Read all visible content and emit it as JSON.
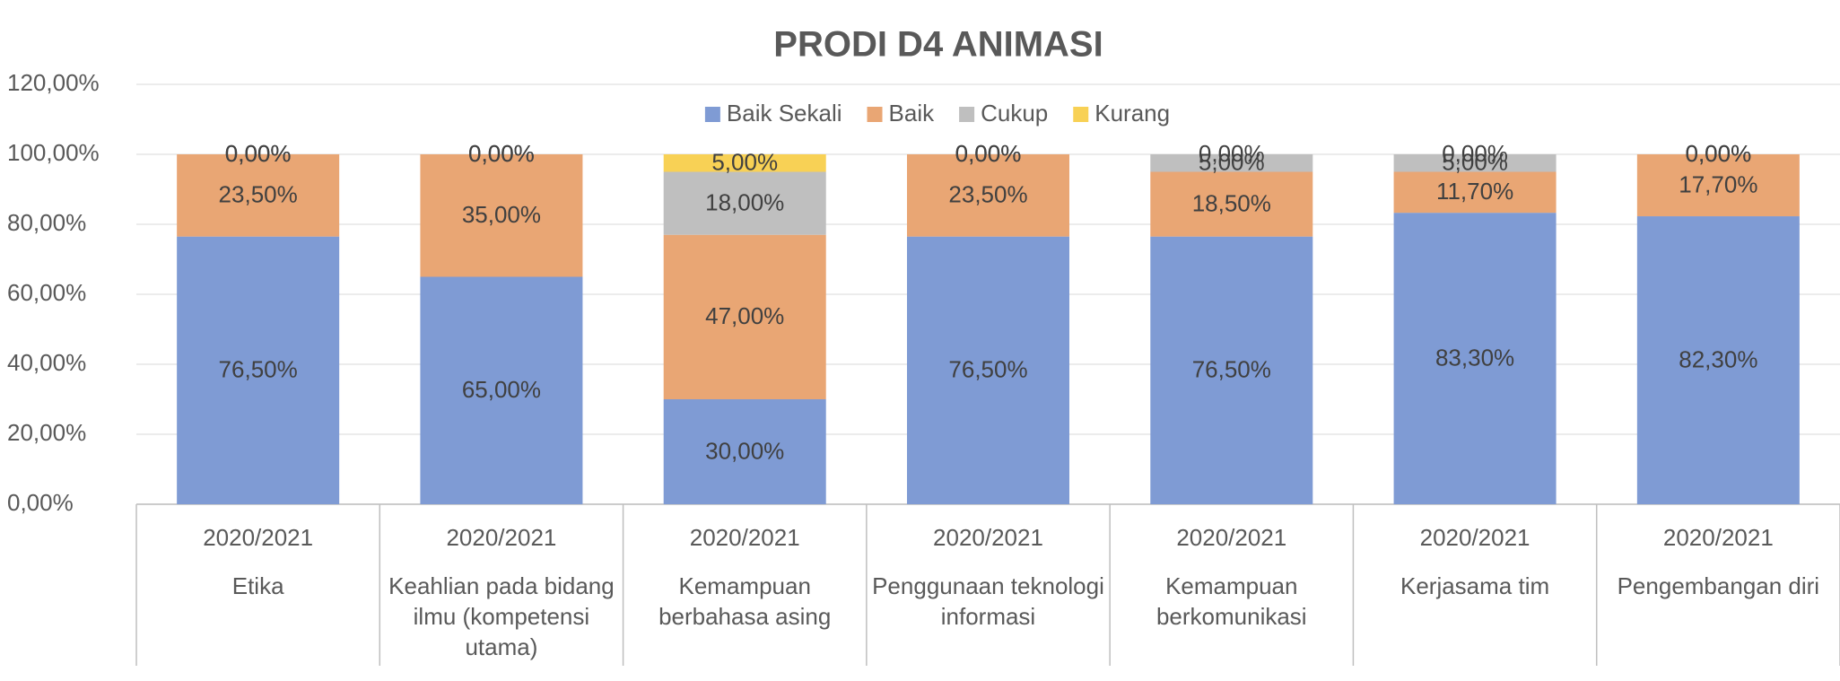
{
  "chart_data": {
    "type": "stacked_bar",
    "title": "PRODI D4 ANIMASI",
    "categories": [
      "Etika",
      "Keahlian pada bidang ilmu (kompetensi utama)",
      "Kemampuan berbahasa asing",
      "Penggunaan teknologi informasi",
      "Kemampuan berkomunikasi",
      "Kerjasama tim",
      "Pengembangan diri"
    ],
    "category_groups": [
      "2020/2021",
      "2020/2021",
      "2020/2021",
      "2020/2021",
      "2020/2021",
      "2020/2021",
      "2020/2021"
    ],
    "series": [
      {
        "name": "Baik Sekali",
        "color": "#7f9bd4",
        "values": [
          76.5,
          65,
          30,
          76.5,
          76.5,
          83.3,
          82.3
        ],
        "value_labels": [
          "76,50%",
          "65,00%",
          "30,00%",
          "76,50%",
          "76,50%",
          "83,30%",
          "82,30%"
        ]
      },
      {
        "name": "Baik",
        "color": "#e9a674",
        "values": [
          23.5,
          35,
          47,
          23.5,
          18.5,
          11.7,
          17.7
        ],
        "value_labels": [
          "23,50%",
          "35,00%",
          "47,00%",
          "23,50%",
          "18,50%",
          "11,70%",
          "17,70%"
        ]
      },
      {
        "name": "Cukup",
        "color": "#bfbfbf",
        "values": [
          0,
          0,
          18,
          0,
          5,
          5,
          0
        ],
        "value_labels": [
          "0,00%",
          "0,00%",
          "18,00%",
          "0,00%",
          "5,00%",
          "5,00%",
          "0,00%"
        ]
      },
      {
        "name": "Kurang",
        "color": "#f8d155",
        "values": [
          0,
          0,
          5,
          0,
          0,
          0,
          0
        ],
        "value_labels": [
          "0,00%",
          "0,00%",
          "5,00%",
          "0,00%",
          "0,00%",
          "0,00%",
          "0,00%"
        ]
      }
    ],
    "ylim": [
      0,
      120
    ],
    "yticks": [
      {
        "value": 0,
        "label": "0,00%"
      },
      {
        "value": 20,
        "label": "20,00%"
      },
      {
        "value": 40,
        "label": "40,00%"
      },
      {
        "value": 60,
        "label": "60,00%"
      },
      {
        "value": 80,
        "label": "80,00%"
      },
      {
        "value": 100,
        "label": "100,00%"
      },
      {
        "value": 120,
        "label": "120,00%"
      }
    ],
    "grid": true,
    "legend": "top"
  }
}
